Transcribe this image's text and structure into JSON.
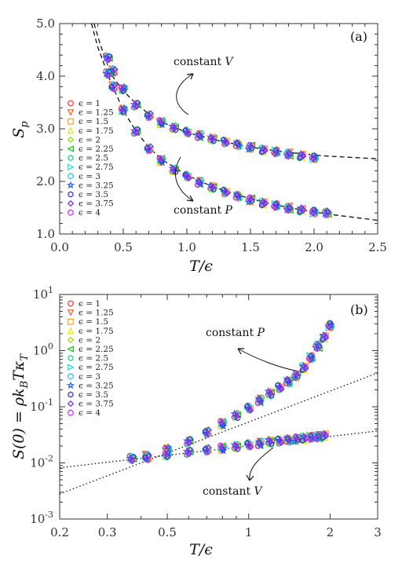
{
  "legend_entries": [
    "ϵ = 1",
    "ϵ = 1.25",
    "ϵ = 1.5",
    "ϵ = 1.75",
    "ϵ = 2",
    "ϵ = 2.25",
    "ϵ = 2.5",
    "ϵ = 2.75",
    "ϵ = 3",
    "ϵ = 3.25",
    "ϵ = 3.5",
    "ϵ = 3.75",
    "ϵ = 4"
  ],
  "series_colors": [
    "#ff3030",
    "#ff5a1e",
    "#ffa028",
    "#e6e600",
    "#8ce000",
    "#10c010",
    "#18d888",
    "#20d8d8",
    "#28b8ff",
    "#2060ff",
    "#3030e0",
    "#8020e0",
    "#d020ff"
  ],
  "marker_shapes": [
    "circle",
    "triangle-down",
    "square",
    "triangle-up",
    "diamond",
    "triangle-left",
    "hexagon",
    "triangle-right",
    "circle",
    "star",
    "hexagon",
    "diamond",
    "circle"
  ],
  "chart_data": [
    {
      "type": "scatter",
      "panel_label": "(a)",
      "xlabel": "T/ϵ",
      "ylabel": "S_p",
      "xlim": [
        0.0,
        2.5
      ],
      "ylim": [
        1.0,
        5.0
      ],
      "x_scale": "linear",
      "y_scale": "linear",
      "xticks": [
        "0.0",
        "0.5",
        "1.0",
        "1.5",
        "2.0",
        "2.5"
      ],
      "yticks": [
        "1.0",
        "2.0",
        "3.0",
        "4.0",
        "5.0"
      ],
      "legend_position": "left",
      "annotations": [
        {
          "text_prefix": "constant ",
          "text_var": "V"
        },
        {
          "text_prefix": "constant ",
          "text_var": "P"
        }
      ],
      "series": [
        {
          "condition": "constant V",
          "points": [
            [
              0.38,
              4.35
            ],
            [
              0.42,
              4.1
            ],
            [
              0.5,
              3.75
            ],
            [
              0.6,
              3.45
            ],
            [
              0.7,
              3.25
            ],
            [
              0.8,
              3.12
            ],
            [
              0.9,
              3.02
            ],
            [
              1.0,
              2.94
            ],
            [
              1.1,
              2.87
            ],
            [
              1.2,
              2.8
            ],
            [
              1.3,
              2.75
            ],
            [
              1.4,
              2.7
            ],
            [
              1.5,
              2.65
            ],
            [
              1.6,
              2.6
            ],
            [
              1.7,
              2.56
            ],
            [
              1.8,
              2.52
            ],
            [
              1.9,
              2.48
            ],
            [
              2.0,
              2.45
            ]
          ]
        },
        {
          "condition": "constant P",
          "points": [
            [
              0.38,
              4.05
            ],
            [
              0.42,
              3.8
            ],
            [
              0.5,
              3.35
            ],
            [
              0.6,
              2.95
            ],
            [
              0.7,
              2.62
            ],
            [
              0.8,
              2.4
            ],
            [
              0.9,
              2.22
            ],
            [
              1.0,
              2.1
            ],
            [
              1.1,
              1.98
            ],
            [
              1.2,
              1.88
            ],
            [
              1.3,
              1.8
            ],
            [
              1.4,
              1.72
            ],
            [
              1.5,
              1.65
            ],
            [
              1.6,
              1.59
            ],
            [
              1.7,
              1.54
            ],
            [
              1.8,
              1.49
            ],
            [
              1.9,
              1.45
            ],
            [
              2.0,
              1.42
            ],
            [
              2.1,
              1.4
            ]
          ]
        }
      ],
      "fit_curves": [
        {
          "condition": "constant V",
          "points": [
            [
              0.27,
              5.0
            ],
            [
              0.32,
              4.6
            ],
            [
              0.4,
              4.05
            ],
            [
              0.5,
              3.72
            ],
            [
              0.6,
              3.48
            ],
            [
              0.7,
              3.28
            ],
            [
              0.8,
              3.13
            ],
            [
              1.0,
              2.93
            ],
            [
              1.2,
              2.8
            ],
            [
              1.5,
              2.65
            ],
            [
              1.8,
              2.55
            ],
            [
              2.1,
              2.48
            ],
            [
              2.5,
              2.43
            ]
          ]
        },
        {
          "condition": "constant P",
          "points": [
            [
              0.25,
              5.0
            ],
            [
              0.3,
              4.55
            ],
            [
              0.4,
              3.9
            ],
            [
              0.5,
              3.35
            ],
            [
              0.6,
              2.95
            ],
            [
              0.7,
              2.65
            ],
            [
              0.8,
              2.42
            ],
            [
              1.0,
              2.12
            ],
            [
              1.2,
              1.9
            ],
            [
              1.5,
              1.67
            ],
            [
              1.8,
              1.5
            ],
            [
              2.1,
              1.38
            ],
            [
              2.5,
              1.26
            ]
          ]
        }
      ]
    },
    {
      "type": "scatter",
      "panel_label": "(b)",
      "xlabel": "T/ϵ",
      "ylabel": "S(0) = ρk_B T κ_T",
      "xlim": [
        0.2,
        3.0
      ],
      "ylim": [
        0.001,
        10
      ],
      "x_scale": "log",
      "y_scale": "log",
      "xticks": [
        "0.2",
        "0.3",
        "0.5",
        "1",
        "2",
        "3"
      ],
      "yticks": [
        "10-3",
        "10-2",
        "10-1",
        "100",
        "101"
      ],
      "legend_position": "left",
      "annotations": [
        {
          "text_prefix": "constant ",
          "text_var": "P"
        },
        {
          "text_prefix": "constant ",
          "text_var": "V"
        }
      ],
      "series": [
        {
          "condition": "constant P",
          "points": [
            [
              0.37,
              0.012
            ],
            [
              0.42,
              0.013
            ],
            [
              0.5,
              0.017
            ],
            [
              0.6,
              0.024
            ],
            [
              0.7,
              0.035
            ],
            [
              0.8,
              0.05
            ],
            [
              0.9,
              0.07
            ],
            [
              1.0,
              0.095
            ],
            [
              1.1,
              0.13
            ],
            [
              1.2,
              0.17
            ],
            [
              1.3,
              0.22
            ],
            [
              1.4,
              0.28
            ],
            [
              1.5,
              0.36
            ],
            [
              1.6,
              0.5
            ],
            [
              1.7,
              0.75
            ],
            [
              1.8,
              1.2
            ],
            [
              1.9,
              1.7
            ],
            [
              2.0,
              2.8
            ]
          ]
        },
        {
          "condition": "constant V",
          "points": [
            [
              0.37,
              0.012
            ],
            [
              0.42,
              0.0125
            ],
            [
              0.5,
              0.0138
            ],
            [
              0.6,
              0.0155
            ],
            [
              0.7,
              0.017
            ],
            [
              0.8,
              0.0183
            ],
            [
              0.9,
              0.0196
            ],
            [
              1.0,
              0.021
            ],
            [
              1.1,
              0.0222
            ],
            [
              1.2,
              0.0234
            ],
            [
              1.3,
              0.0245
            ],
            [
              1.4,
              0.0256
            ],
            [
              1.5,
              0.0266
            ],
            [
              1.6,
              0.0276
            ],
            [
              1.7,
              0.0285
            ],
            [
              1.8,
              0.0293
            ],
            [
              1.9,
              0.03
            ]
          ]
        }
      ],
      "fit_lines": [
        {
          "condition": "constant P",
          "points": [
            [
              0.2,
              0.0028
            ],
            [
              3.0,
              0.4
            ]
          ]
        },
        {
          "condition": "constant V",
          "points": [
            [
              0.2,
              0.0082
            ],
            [
              3.0,
              0.037
            ]
          ]
        }
      ]
    }
  ]
}
